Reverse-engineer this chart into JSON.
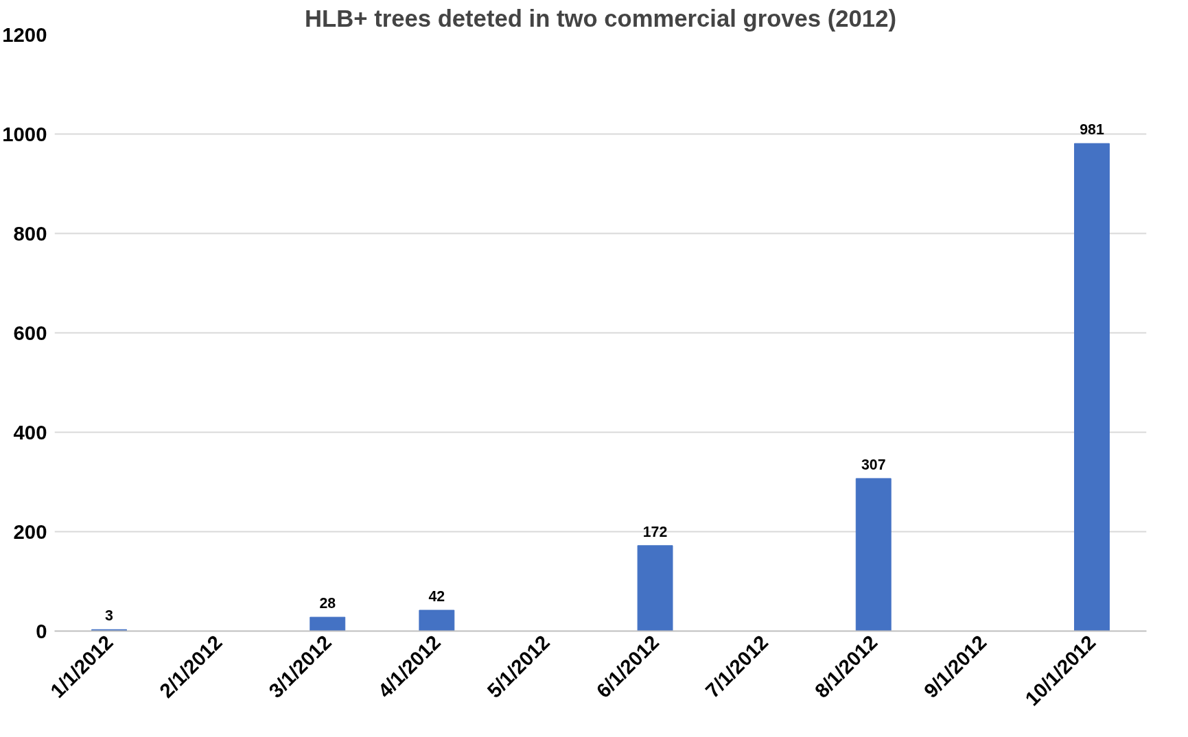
{
  "chart_data": {
    "type": "bar",
    "title": "HLB+ trees deteted in two commercial groves (2012)",
    "categories": [
      "1/1/2012",
      "2/1/2012",
      "3/1/2012",
      "4/1/2012",
      "5/1/2012",
      "6/1/2012",
      "7/1/2012",
      "8/1/2012",
      "9/1/2012",
      "10/1/2012"
    ],
    "values": [
      3,
      null,
      28,
      42,
      null,
      172,
      null,
      307,
      null,
      981
    ],
    "color": "#4472c4",
    "ylim": [
      0,
      1200
    ],
    "yticks": [
      0,
      200,
      400,
      600,
      800,
      1000,
      1200
    ],
    "grid": "y",
    "data_labels": true
  }
}
